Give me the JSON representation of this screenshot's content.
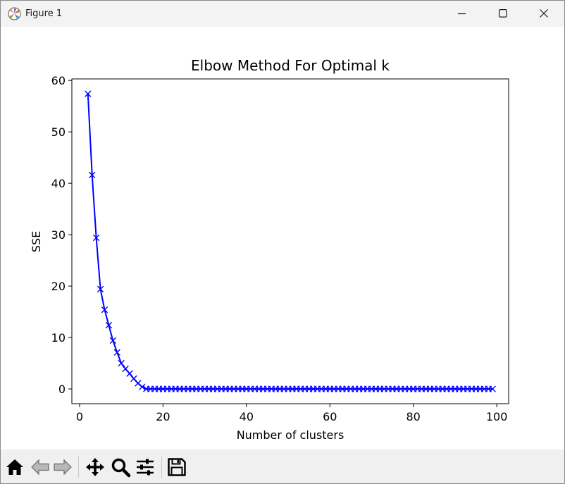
{
  "window": {
    "title": "Figure 1",
    "icons": {
      "app": "matplotlib-icon",
      "minimize": "minimize-icon",
      "maximize": "maximize-icon",
      "close": "close-icon"
    }
  },
  "toolbar": {
    "buttons": [
      {
        "name": "home",
        "icon": "home-icon"
      },
      {
        "name": "back",
        "icon": "back-arrow-icon"
      },
      {
        "name": "forward",
        "icon": "forward-arrow-icon"
      },
      {
        "name": "pan",
        "icon": "move-icon"
      },
      {
        "name": "zoom",
        "icon": "magnifier-icon"
      },
      {
        "name": "configure-subplots",
        "icon": "sliders-icon"
      },
      {
        "name": "save",
        "icon": "floppy-disk-icon"
      }
    ]
  },
  "colors": {
    "line": "#0000ff",
    "axes": "#000000",
    "titlebar": "#f3f3f3",
    "toolbar": "#f0f0f0"
  },
  "chart_data": {
    "type": "line",
    "title": "Elbow Method For Optimal k",
    "xlabel": "Number of clusters",
    "ylabel": "SSE",
    "marker": "x",
    "xlim": [
      -1.85,
      102.85
    ],
    "ylim": [
      -2.87,
      60.3
    ],
    "xticks": [
      0,
      20,
      40,
      60,
      80,
      100
    ],
    "xtick_labels": [
      "0",
      "20",
      "40",
      "60",
      "80",
      "100"
    ],
    "yticks": [
      0,
      10,
      20,
      30,
      40,
      50,
      60
    ],
    "ytick_labels": [
      "0",
      "10",
      "20",
      "30",
      "40",
      "50",
      "60"
    ],
    "grid": false,
    "series": [
      {
        "x": [
          2,
          3,
          4,
          5,
          6,
          7,
          8,
          9,
          10,
          11,
          12,
          13,
          14,
          15,
          16,
          17,
          18,
          19,
          20,
          21,
          22,
          23,
          24,
          25,
          26,
          27,
          28,
          29,
          30,
          31,
          32,
          33,
          34,
          35,
          36,
          37,
          38,
          39,
          40,
          41,
          42,
          43,
          44,
          45,
          46,
          47,
          48,
          49,
          50,
          51,
          52,
          53,
          54,
          55,
          56,
          57,
          58,
          59,
          60,
          61,
          62,
          63,
          64,
          65,
          66,
          67,
          68,
          69,
          70,
          71,
          72,
          73,
          74,
          75,
          76,
          77,
          78,
          79,
          80,
          81,
          82,
          83,
          84,
          85,
          86,
          87,
          88,
          89,
          90,
          91,
          92,
          93,
          94,
          95,
          96,
          97,
          98,
          99
        ],
        "y": [
          57.4,
          41.6,
          29.4,
          19.4,
          15.4,
          12.4,
          9.4,
          7.1,
          5.0,
          3.9,
          3.0,
          2.0,
          1.1,
          0.4,
          0,
          0,
          0,
          0,
          0,
          0,
          0,
          0,
          0,
          0,
          0,
          0,
          0,
          0,
          0,
          0,
          0,
          0,
          0,
          0,
          0,
          0,
          0,
          0,
          0,
          0,
          0,
          0,
          0,
          0,
          0,
          0,
          0,
          0,
          0,
          0,
          0,
          0,
          0,
          0,
          0,
          0,
          0,
          0,
          0,
          0,
          0,
          0,
          0,
          0,
          0,
          0,
          0,
          0,
          0,
          0,
          0,
          0,
          0,
          0,
          0,
          0,
          0,
          0,
          0,
          0,
          0,
          0,
          0,
          0,
          0,
          0,
          0,
          0,
          0,
          0,
          0,
          0,
          0,
          0,
          0,
          0,
          0,
          0
        ]
      }
    ]
  }
}
